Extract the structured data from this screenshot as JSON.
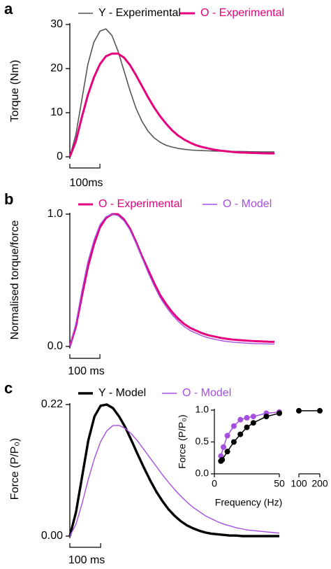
{
  "chart_data": [
    {
      "type": "line",
      "label": "a",
      "ylabel": "Torque (Nm)",
      "x": [
        0,
        20,
        40,
        60,
        80,
        100,
        120,
        140,
        160,
        180,
        200,
        220,
        240,
        260,
        280,
        300,
        320,
        340,
        360,
        380,
        400,
        420,
        440,
        460,
        480,
        500,
        520,
        540,
        560,
        580,
        600,
        620,
        640,
        660,
        680
      ],
      "xlim": [
        0,
        680
      ],
      "ylim": [
        0,
        30
      ],
      "yticks": [
        0,
        10,
        20,
        30
      ],
      "scalebar": {
        "value": 100,
        "label": "100ms"
      },
      "series": [
        {
          "name": "Y - Experimental",
          "color": "#555555",
          "line_width": 1.6,
          "values": [
            0,
            5,
            13,
            21,
            26,
            28.5,
            29,
            27.5,
            24,
            19.5,
            15,
            11,
            8,
            5.8,
            4.3,
            3.3,
            2.6,
            2.2,
            1.9,
            1.7,
            1.55,
            1.45,
            1.4,
            1.35,
            1.3,
            1.28,
            1.25,
            1.22,
            1.2,
            1.18,
            1.15,
            1.13,
            1.1,
            1.1,
            1.1
          ]
        },
        {
          "name": "O - Experimental",
          "color": "#e6007e",
          "line_width": 3,
          "values": [
            0,
            3.5,
            9,
            14,
            18,
            21,
            22.8,
            23.4,
            23.4,
            22.5,
            20.8,
            18.5,
            16,
            13.5,
            11.2,
            9.2,
            7.5,
            6,
            4.8,
            3.9,
            3.2,
            2.6,
            2.2,
            1.9,
            1.6,
            1.4,
            1.25,
            1.1,
            1,
            0.95,
            0.9,
            0.85,
            0.8,
            0.78,
            0.75
          ]
        }
      ]
    },
    {
      "type": "line",
      "label": "b",
      "ylabel": "Normalised torque/force",
      "x": [
        0,
        20,
        40,
        60,
        80,
        100,
        120,
        140,
        160,
        180,
        200,
        220,
        240,
        260,
        280,
        300,
        320,
        340,
        360,
        380,
        400,
        420,
        440,
        460,
        480,
        500,
        520,
        540,
        560,
        580,
        600,
        620,
        640,
        660,
        680
      ],
      "xlim": [
        0,
        680
      ],
      "ylim": [
        0,
        1
      ],
      "yticks": [
        {
          "value": 0,
          "label": "0.0"
        },
        {
          "value": 1,
          "label": "1.0"
        }
      ],
      "scalebar": {
        "value": 100,
        "label": "100 ms"
      },
      "series": [
        {
          "name": "O - Experimental",
          "color": "#e6007e",
          "line_width": 3,
          "values": [
            0,
            0.15,
            0.38,
            0.6,
            0.77,
            0.9,
            0.97,
            1,
            1,
            0.96,
            0.89,
            0.79,
            0.68,
            0.58,
            0.48,
            0.39,
            0.32,
            0.26,
            0.21,
            0.17,
            0.14,
            0.12,
            0.1,
            0.085,
            0.075,
            0.065,
            0.058,
            0.052,
            0.048,
            0.045,
            0.042,
            0.04,
            0.038,
            0.036,
            0.035
          ]
        },
        {
          "name": "O - Model",
          "color": "#a54ee0",
          "line_width": 1.4,
          "values": [
            0,
            0.17,
            0.42,
            0.64,
            0.8,
            0.92,
            0.98,
            1,
            0.99,
            0.95,
            0.88,
            0.78,
            0.67,
            0.56,
            0.46,
            0.37,
            0.3,
            0.24,
            0.19,
            0.15,
            0.12,
            0.1,
            0.08,
            0.065,
            0.055,
            0.045,
            0.038,
            0.033,
            0.029,
            0.026,
            0.023,
            0.021,
            0.02,
            0.019,
            0.018
          ]
        }
      ]
    },
    {
      "type": "line",
      "label": "c",
      "ylabel": "Force (P/P₀)",
      "x": [
        0,
        20,
        40,
        60,
        80,
        100,
        120,
        140,
        160,
        180,
        200,
        220,
        240,
        260,
        280,
        300,
        320,
        340,
        360,
        380,
        400,
        420,
        440,
        460,
        480,
        500,
        520,
        540,
        560,
        580,
        600,
        620,
        640,
        660,
        680
      ],
      "xlim": [
        0,
        680
      ],
      "ylim": [
        0,
        0.22
      ],
      "yticks": [
        {
          "value": 0,
          "label": "0.00"
        },
        0.22
      ],
      "scalebar": {
        "value": 100,
        "label": "100 ms"
      },
      "series": [
        {
          "name": "Y - Model",
          "color": "#000000",
          "line_width": 3.4,
          "values": [
            0,
            0.04,
            0.1,
            0.16,
            0.2,
            0.218,
            0.22,
            0.214,
            0.2,
            0.182,
            0.16,
            0.137,
            0.115,
            0.094,
            0.075,
            0.059,
            0.045,
            0.034,
            0.025,
            0.018,
            0.013,
            0.009,
            0.006,
            0.004,
            0.003,
            0.002,
            0.001,
            0.001,
            0,
            0,
            0,
            0,
            0,
            0,
            0
          ]
        },
        {
          "name": "O - Model",
          "color": "#a54ee0",
          "line_width": 1.4,
          "values": [
            0,
            0.02,
            0.055,
            0.095,
            0.13,
            0.158,
            0.176,
            0.185,
            0.185,
            0.18,
            0.171,
            0.159,
            0.145,
            0.131,
            0.117,
            0.103,
            0.09,
            0.078,
            0.067,
            0.057,
            0.048,
            0.041,
            0.034,
            0.029,
            0.024,
            0.02,
            0.017,
            0.014,
            0.012,
            0.01,
            0.009,
            0.008,
            0.007,
            0.006,
            0.005
          ]
        }
      ]
    },
    {
      "type": "scatter",
      "ylabel": "Force (P/P₀)",
      "xlabel": "Frequency (Hz)",
      "xsegments": [
        [
          0,
          50
        ],
        [
          100,
          200
        ]
      ],
      "xticks": [
        0,
        50,
        100,
        200
      ],
      "ylim": [
        0,
        1
      ],
      "yticks": [
        {
          "value": 0,
          "label": "0.0"
        },
        {
          "value": 0.5,
          "label": "0.5"
        },
        {
          "value": 1,
          "label": "1.0"
        }
      ],
      "series": [
        {
          "color": "#a54ee0",
          "x": [
            5,
            7,
            10,
            15,
            20,
            25,
            30,
            40,
            50
          ],
          "values": [
            0.28,
            0.42,
            0.6,
            0.75,
            0.85,
            0.88,
            0.9,
            0.95,
            0.97
          ]
        },
        {
          "color": "#000000",
          "x": [
            5,
            6,
            10,
            15,
            20,
            25,
            30,
            40,
            50,
            100,
            200
          ],
          "values": [
            0.2,
            0.22,
            0.35,
            0.5,
            0.62,
            0.73,
            0.8,
            0.9,
            0.95,
            0.99,
            0.99
          ]
        }
      ]
    }
  ]
}
